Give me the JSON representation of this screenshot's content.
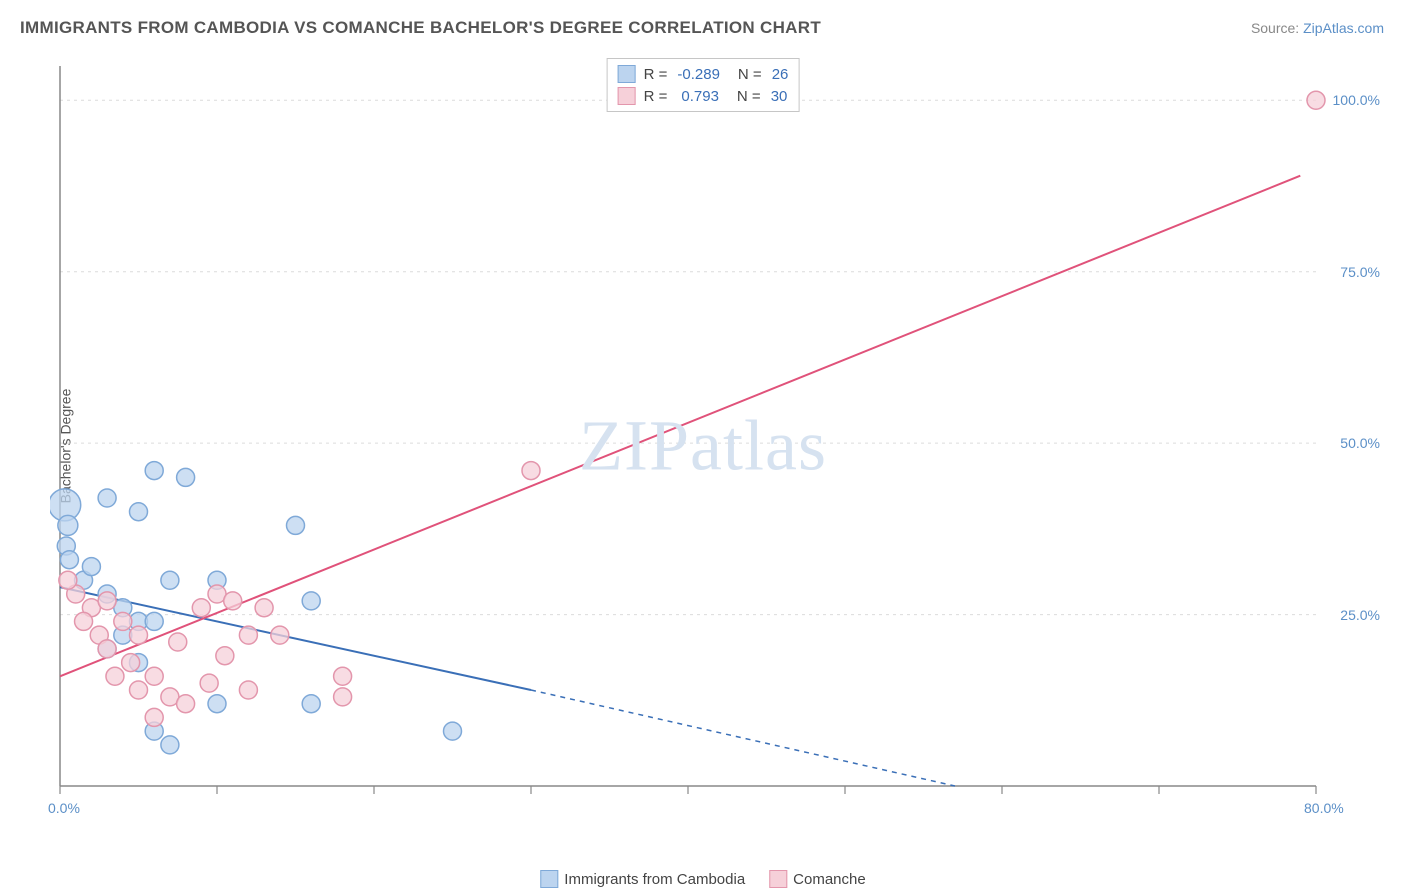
{
  "title": "IMMIGRANTS FROM CAMBODIA VS COMANCHE BACHELOR'S DEGREE CORRELATION CHART",
  "source_label": "Source:",
  "source_link": "ZipAtlas.com",
  "y_axis_label": "Bachelor's Degree",
  "watermark": "ZIPatlas",
  "chart": {
    "type": "scatter",
    "background_color": "#ffffff",
    "grid_color": "#dcdcdc",
    "axis_color": "#888888",
    "xlim": [
      0,
      80
    ],
    "ylim": [
      0,
      105
    ],
    "x_ticks": [
      0,
      10,
      20,
      30,
      40,
      50,
      60,
      70,
      80
    ],
    "x_label_major": [
      0,
      80
    ],
    "y_ticks": [
      25,
      50,
      75,
      100
    ],
    "x_tick_format": "%.1f%%",
    "y_tick_format": "%.1f%%",
    "marker_radius": 9,
    "marker_stroke_width": 1.5,
    "line_width": 2,
    "dash_pattern": "5,5"
  },
  "series": [
    {
      "key": "cambodia",
      "label": "Immigrants from Cambodia",
      "color_fill": "#bcd4ef",
      "color_stroke": "#7fa9d8",
      "line_color": "#3a6fb7",
      "r_value": "-0.289",
      "n_value": "26",
      "trend_solid": [
        [
          0,
          29
        ],
        [
          30,
          14
        ]
      ],
      "trend_dash": [
        [
          30,
          14
        ],
        [
          57,
          0
        ]
      ],
      "points": [
        [
          0.3,
          41,
          16
        ],
        [
          0.5,
          38,
          10
        ],
        [
          0.4,
          35,
          9
        ],
        [
          0.6,
          33,
          9
        ],
        [
          1.5,
          30,
          9
        ],
        [
          3,
          42,
          9
        ],
        [
          5,
          40,
          9
        ],
        [
          2,
          32,
          9
        ],
        [
          3,
          28,
          9
        ],
        [
          4,
          26,
          9
        ],
        [
          5,
          24,
          9
        ],
        [
          6,
          24,
          9
        ],
        [
          4,
          22,
          9
        ],
        [
          3,
          20,
          9
        ],
        [
          5,
          18,
          9
        ],
        [
          6,
          8,
          9
        ],
        [
          7,
          6,
          9
        ],
        [
          8,
          45,
          9
        ],
        [
          10,
          30,
          9
        ],
        [
          10,
          12,
          9
        ],
        [
          15,
          38,
          9
        ],
        [
          16,
          27,
          9
        ],
        [
          16,
          12,
          9
        ],
        [
          6,
          46,
          9
        ],
        [
          25,
          8,
          9
        ],
        [
          7,
          30,
          9
        ]
      ]
    },
    {
      "key": "comanche",
      "label": "Comanche",
      "color_fill": "#f6d0d9",
      "color_stroke": "#e396ac",
      "line_color": "#e0527a",
      "r_value": "0.793",
      "n_value": "30",
      "trend_solid": [
        [
          0,
          16
        ],
        [
          79,
          89
        ]
      ],
      "trend_dash": null,
      "points": [
        [
          1,
          28,
          9
        ],
        [
          2,
          26,
          9
        ],
        [
          1.5,
          24,
          9
        ],
        [
          3,
          27,
          9
        ],
        [
          2.5,
          22,
          9
        ],
        [
          4,
          24,
          9
        ],
        [
          3,
          20,
          9
        ],
        [
          5,
          22,
          9
        ],
        [
          4.5,
          18,
          9
        ],
        [
          6,
          16,
          9
        ],
        [
          5,
          14,
          9
        ],
        [
          7,
          13,
          9
        ],
        [
          8,
          12,
          9
        ],
        [
          6,
          10,
          9
        ],
        [
          9,
          26,
          9
        ],
        [
          10,
          28,
          9
        ],
        [
          11,
          27,
          9
        ],
        [
          12,
          22,
          9
        ],
        [
          13,
          26,
          9
        ],
        [
          12,
          14,
          9
        ],
        [
          14,
          22,
          9
        ],
        [
          18,
          13,
          9
        ],
        [
          18,
          16,
          9
        ],
        [
          30,
          46,
          9
        ],
        [
          80,
          100,
          9
        ],
        [
          0.5,
          30,
          9
        ],
        [
          3.5,
          16,
          9
        ],
        [
          7.5,
          21,
          9
        ],
        [
          9.5,
          15,
          9
        ],
        [
          10.5,
          19,
          9
        ]
      ]
    }
  ],
  "legend_r_label": "R =",
  "legend_n_label": "N ="
}
